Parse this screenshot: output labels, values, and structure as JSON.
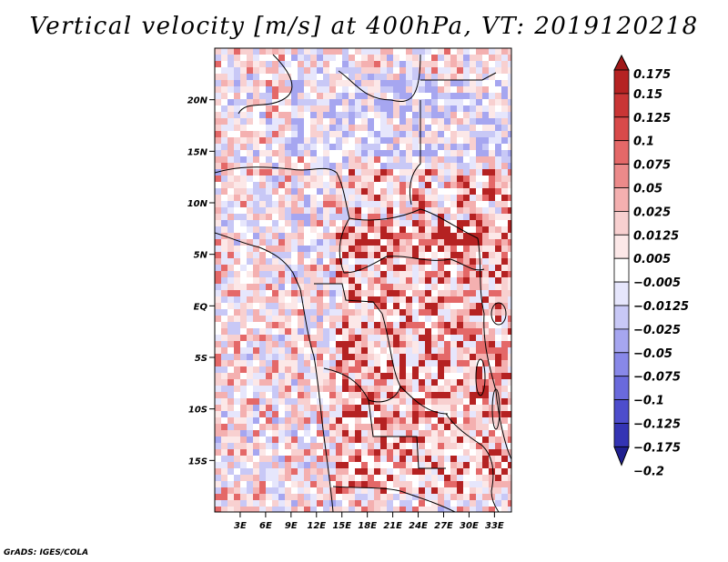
{
  "title": "Vertical velocity [m/s] at 400hPa, VT: 2019120218",
  "footer": "GrADS: IGES/COLA",
  "map": {
    "lat_labels": [
      "20N",
      "15N",
      "10N",
      "5N",
      "EQ",
      "5S",
      "10S",
      "15S"
    ],
    "lat_values": [
      20,
      15,
      10,
      5,
      0,
      -5,
      -10,
      -15
    ],
    "lon_labels": [
      "3E",
      "6E",
      "9E",
      "12E",
      "15E",
      "18E",
      "21E",
      "24E",
      "27E",
      "30E",
      "33E"
    ],
    "lon_values": [
      3,
      6,
      9,
      12,
      15,
      18,
      21,
      24,
      27,
      30,
      33
    ],
    "lon_range": [
      0,
      35
    ],
    "lat_range": [
      -20,
      25
    ]
  },
  "colorbar": {
    "labels": [
      "0.175",
      "0.15",
      "0.125",
      "0.1",
      "0.075",
      "0.05",
      "0.025",
      "0.0125",
      "0.005",
      "−0.005",
      "−0.0125",
      "−0.025",
      "−0.05",
      "−0.075",
      "−0.1",
      "−0.125",
      "−0.175",
      "−0.2"
    ],
    "colors": [
      "#a01818",
      "#b52222",
      "#c93535",
      "#d84a4a",
      "#e46868",
      "#ec8a8a",
      "#f4b0b0",
      "#f8d0d0",
      "#fce8e8",
      "#ffffff",
      "#e6e6fc",
      "#c8c8f6",
      "#a6a6f0",
      "#8888e8",
      "#6a6adc",
      "#4d4dcc",
      "#3434b4",
      "#202090"
    ]
  }
}
